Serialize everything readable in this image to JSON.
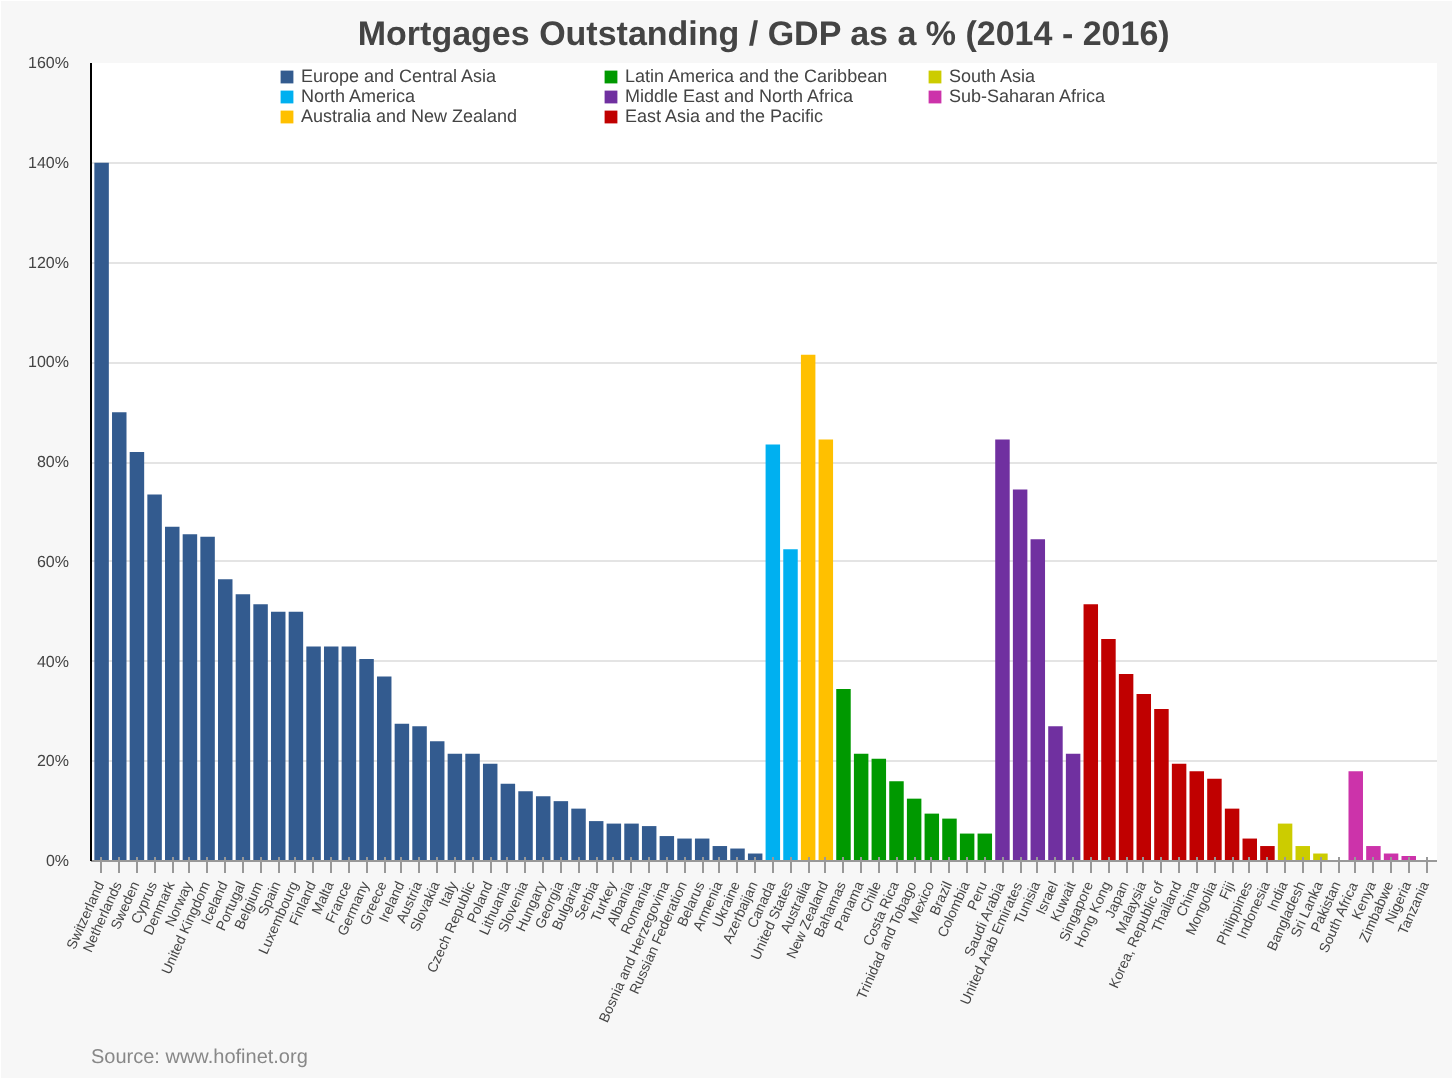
{
  "chart_data": {
    "type": "bar",
    "title": "Mortgages Outstanding / GDP as a % (2014 - 2016)",
    "categories": [
      "Switzerland",
      "Netherlands",
      "Sweden",
      "Cyprus",
      "Denmark",
      "Norway",
      "United Kingdom",
      "Iceland",
      "Portugal",
      "Belgium",
      "Spain",
      "Luxembourg",
      "Finland",
      "Malta",
      "France",
      "Germany",
      "Greece",
      "Ireland",
      "Austria",
      "Slovakia",
      "Italy",
      "Czech Republic",
      "Poland",
      "Lithuania",
      "Slovenia",
      "Hungary",
      "Georgia",
      "Bulgaria",
      "Serbia",
      "Turkey",
      "Albania",
      "Romania",
      "Bosnia and Herzegovina",
      "Russian Federation",
      "Belarus",
      "Armenia",
      "Ukraine",
      "Azerbaijan",
      "Canada",
      "United States",
      "Australia",
      "New Zealand",
      "Bahamas",
      "Panama",
      "Chile",
      "Costa Rica",
      "Trinidad and Tobago",
      "Mexico",
      "Brazil",
      "Colombia",
      "Peru",
      "Saudi Arabia",
      "United Arab Emirates",
      "Tunisia",
      "Israel",
      "Kuwait",
      "Singapore",
      "Hong Kong",
      "Japan",
      "Malaysia",
      "Korea, Republic of",
      "Thailand",
      "China",
      "Mongolia",
      "Fiji",
      "Philippines",
      "Indonesia",
      "India",
      "Bangladesh",
      "Sri Lanka",
      "Pakistan",
      "South Africa",
      "Kenya",
      "Zimbabwe",
      "Nigeria",
      "Tanzania"
    ],
    "series": [
      {
        "name": "Europe and Central Asia",
        "color": "#335b8f",
        "values": [
          140,
          90,
          82,
          73.5,
          67,
          65.5,
          65,
          56.5,
          53.5,
          51.5,
          50,
          50,
          43,
          43,
          43,
          40.5,
          37,
          27.5,
          27,
          24,
          21.5,
          21.5,
          19.5,
          15.5,
          14,
          13,
          12,
          10.5,
          8,
          7.5,
          7.5,
          7,
          5,
          4.5,
          4.5,
          3,
          2.5,
          1.5,
          null,
          null,
          null,
          null,
          null,
          null,
          null,
          null,
          null,
          null,
          null,
          null,
          null,
          null,
          null,
          null,
          null,
          null,
          null,
          null,
          null,
          null,
          null,
          null,
          null,
          null,
          null,
          null,
          null,
          null,
          null,
          null,
          null,
          null,
          null,
          null,
          null,
          null
        ]
      },
      {
        "name": "North America",
        "color": "#00b0f0",
        "values": [
          null,
          null,
          null,
          null,
          null,
          null,
          null,
          null,
          null,
          null,
          null,
          null,
          null,
          null,
          null,
          null,
          null,
          null,
          null,
          null,
          null,
          null,
          null,
          null,
          null,
          null,
          null,
          null,
          null,
          null,
          null,
          null,
          null,
          null,
          null,
          null,
          null,
          null,
          83.5,
          62.5,
          null,
          null,
          null,
          null,
          null,
          null,
          null,
          null,
          null,
          null,
          null,
          null,
          null,
          null,
          null,
          null,
          null,
          null,
          null,
          null,
          null,
          null,
          null,
          null,
          null,
          null,
          null,
          null,
          null,
          null,
          null,
          null,
          null,
          null,
          null,
          null
        ]
      },
      {
        "name": "Australia and New Zealand",
        "color": "#ffc000",
        "values": [
          null,
          null,
          null,
          null,
          null,
          null,
          null,
          null,
          null,
          null,
          null,
          null,
          null,
          null,
          null,
          null,
          null,
          null,
          null,
          null,
          null,
          null,
          null,
          null,
          null,
          null,
          null,
          null,
          null,
          null,
          null,
          null,
          null,
          null,
          null,
          null,
          null,
          null,
          null,
          null,
          101.5,
          84.5,
          null,
          null,
          null,
          null,
          null,
          null,
          null,
          null,
          null,
          null,
          null,
          null,
          null,
          null,
          null,
          null,
          null,
          null,
          null,
          null,
          null,
          null,
          null,
          null,
          null,
          null,
          null,
          null,
          null,
          null,
          null,
          null,
          null,
          null
        ]
      },
      {
        "name": "Latin America and the Caribbean",
        "color": "#009900",
        "values": [
          null,
          null,
          null,
          null,
          null,
          null,
          null,
          null,
          null,
          null,
          null,
          null,
          null,
          null,
          null,
          null,
          null,
          null,
          null,
          null,
          null,
          null,
          null,
          null,
          null,
          null,
          null,
          null,
          null,
          null,
          null,
          null,
          null,
          null,
          null,
          null,
          null,
          null,
          null,
          null,
          null,
          null,
          34.5,
          21.5,
          20.5,
          16,
          12.5,
          9.5,
          8.5,
          5.5,
          5.5,
          null,
          null,
          null,
          null,
          null,
          null,
          null,
          null,
          null,
          null,
          null,
          null,
          null,
          null,
          null,
          null,
          null,
          null,
          null,
          null,
          null,
          null,
          null,
          null,
          null
        ]
      },
      {
        "name": "Middle East and North Africa",
        "color": "#7030a0",
        "values": [
          null,
          null,
          null,
          null,
          null,
          null,
          null,
          null,
          null,
          null,
          null,
          null,
          null,
          null,
          null,
          null,
          null,
          null,
          null,
          null,
          null,
          null,
          null,
          null,
          null,
          null,
          null,
          null,
          null,
          null,
          null,
          null,
          null,
          null,
          null,
          null,
          null,
          null,
          null,
          null,
          null,
          null,
          null,
          null,
          null,
          null,
          null,
          null,
          null,
          null,
          null,
          84.5,
          74.5,
          64.5,
          27,
          21.5,
          null,
          null,
          null,
          null,
          null,
          null,
          null,
          null,
          null,
          null,
          null,
          null,
          null,
          null,
          null,
          null,
          null,
          null,
          null,
          null
        ]
      },
      {
        "name": "East Asia and the Pacific",
        "color": "#c00000",
        "values": [
          null,
          null,
          null,
          null,
          null,
          null,
          null,
          null,
          null,
          null,
          null,
          null,
          null,
          null,
          null,
          null,
          null,
          null,
          null,
          null,
          null,
          null,
          null,
          null,
          null,
          null,
          null,
          null,
          null,
          null,
          null,
          null,
          null,
          null,
          null,
          null,
          null,
          null,
          null,
          null,
          null,
          null,
          null,
          null,
          null,
          null,
          null,
          null,
          null,
          null,
          null,
          null,
          null,
          null,
          null,
          null,
          51.5,
          44.5,
          37.5,
          33.5,
          30.5,
          19.5,
          18,
          16.5,
          10.5,
          4.5,
          3,
          null,
          null,
          null,
          null,
          null,
          null,
          null,
          null,
          null
        ]
      },
      {
        "name": "South Asia",
        "color": "#cccc00",
        "values": [
          null,
          null,
          null,
          null,
          null,
          null,
          null,
          null,
          null,
          null,
          null,
          null,
          null,
          null,
          null,
          null,
          null,
          null,
          null,
          null,
          null,
          null,
          null,
          null,
          null,
          null,
          null,
          null,
          null,
          null,
          null,
          null,
          null,
          null,
          null,
          null,
          null,
          null,
          null,
          null,
          null,
          null,
          null,
          null,
          null,
          null,
          null,
          null,
          null,
          null,
          null,
          null,
          null,
          null,
          null,
          null,
          null,
          null,
          null,
          null,
          null,
          null,
          null,
          null,
          null,
          null,
          null,
          7.5,
          3,
          1.5,
          null,
          null,
          null,
          null,
          null,
          null
        ]
      },
      {
        "name": "Sub-Saharan Africa",
        "color": "#cc33aa",
        "values": [
          null,
          null,
          null,
          null,
          null,
          null,
          null,
          null,
          null,
          null,
          null,
          null,
          null,
          null,
          null,
          null,
          null,
          null,
          null,
          null,
          null,
          null,
          null,
          null,
          null,
          null,
          null,
          null,
          null,
          null,
          null,
          null,
          null,
          null,
          null,
          null,
          null,
          null,
          null,
          null,
          null,
          null,
          null,
          null,
          null,
          null,
          null,
          null,
          null,
          null,
          null,
          null,
          null,
          null,
          null,
          null,
          null,
          null,
          null,
          null,
          null,
          null,
          null,
          null,
          null,
          null,
          null,
          null,
          null,
          null,
          null,
          18,
          3,
          1.5,
          1,
          null
        ]
      }
    ],
    "ylim": [
      0,
      160
    ],
    "yticks": [
      {
        "value": 0,
        "label": "0%"
      },
      {
        "value": 20,
        "label": "20%"
      },
      {
        "value": 40,
        "label": "40%"
      },
      {
        "value": 60,
        "label": "60%"
      },
      {
        "value": 80,
        "label": "80%"
      },
      {
        "value": 100,
        "label": "100%"
      },
      {
        "value": 120,
        "label": "120%"
      },
      {
        "value": 140,
        "label": "140%"
      },
      {
        "value": 160,
        "label": "160%"
      }
    ],
    "grid": "y",
    "legend": "top",
    "annotations": [
      "Source: www.hofinet.org"
    ]
  }
}
